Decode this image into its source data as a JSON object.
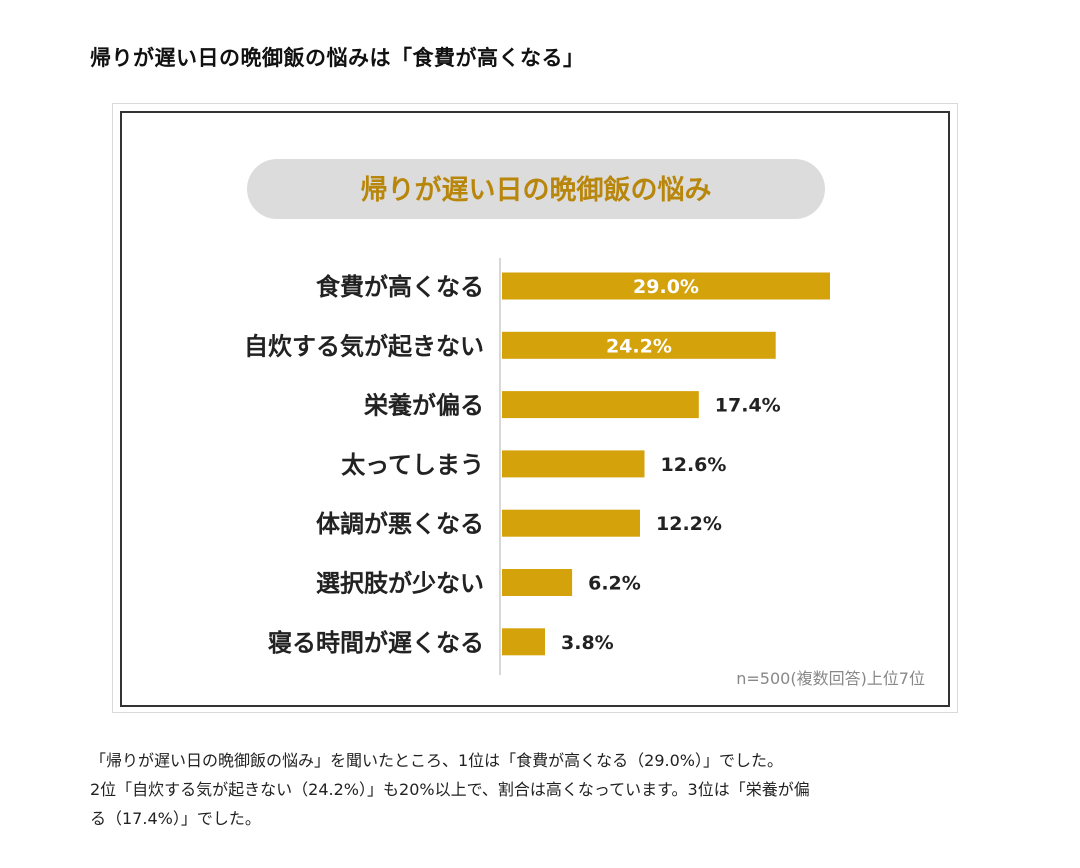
{
  "article": {
    "heading": "帰りが遅い日の晩御飯の悩みは「食費が高くなる」",
    "caption_lines": [
      "「帰りが遅い日の晩御飯の悩み」を聞いたところ、1位は「食費が高くなる（29.0%）」でした。",
      "2位「自炊する気が起きない（24.2%）」も20%以上で、割合は高くなっています。3位は「栄養が偏",
      "る（17.4%）」でした。"
    ]
  },
  "chart_data": {
    "type": "bar",
    "orientation": "horizontal",
    "title": "帰りが遅い日の晩御飯の悩み",
    "categories": [
      "食費が高くなる",
      "自炊する気が起きない",
      "栄養が偏る",
      "太ってしまう",
      "体調が悪くなる",
      "選択肢が少ない",
      "寝る時間が遅くなる"
    ],
    "values": [
      29.0,
      24.2,
      17.4,
      12.6,
      12.2,
      6.2,
      3.8
    ],
    "value_labels": [
      "29.0%",
      "24.2%",
      "17.4%",
      "12.6%",
      "12.2%",
      "6.2%",
      "3.8%"
    ],
    "label_inside_bar": [
      true,
      true,
      false,
      false,
      false,
      false,
      false
    ],
    "xlim": [
      0,
      29.0
    ],
    "note": "n=500(複数回答)上位7位",
    "colors": {
      "bar": "#d4a20a",
      "title_pill": "#dcdcdc",
      "title_text": "#b8860b",
      "axis_line": "#cccccc",
      "inside_label": "#ffffff",
      "outside_label": "#222222",
      "note_text": "#888888"
    }
  }
}
